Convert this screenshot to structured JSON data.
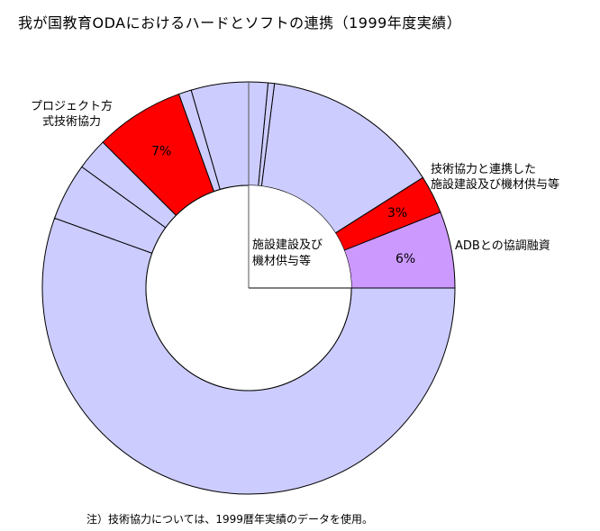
{
  "title": "我が国教育ODAにおけるハードとソフトの連携（1999年度実績）",
  "note": "注）技術協力については、1999暦年実績のデータを使用。",
  "chart_data": {
    "type": "pie",
    "donut": true,
    "title": "我が国教育ODAにおけるハードとソフトの連携（1999年度実績）",
    "center_label": [
      "施設建設及び",
      "機材供与等"
    ],
    "slices": [
      {
        "value": 6,
        "color": "#cc99ff",
        "pct_label": "6%",
        "outer_label": [
          "ADBとの協調融資"
        ]
      },
      {
        "value": 3,
        "color": "#ff0000",
        "pct_label": "3%",
        "outer_label": [
          "技術協力と連携した",
          "施設建設及び機材供与等"
        ]
      },
      {
        "value": 14,
        "color": "#ccccff"
      },
      {
        "value": 0.5,
        "color": "#ccccff"
      },
      {
        "value": 6,
        "color": "#ccccff"
      },
      {
        "value": 1,
        "color": "#ccccff"
      },
      {
        "value": 7,
        "color": "#ff0000",
        "pct_label": "7%",
        "outer_label": [
          "プロジェクト方",
          "式技術協力"
        ]
      },
      {
        "value": 2.5,
        "color": "#ccccff"
      },
      {
        "value": 4.5,
        "color": "#ccccff"
      },
      {
        "value": 55.5,
        "color": "#ccccff"
      }
    ],
    "hole_highlight_color": "#ccccff"
  }
}
